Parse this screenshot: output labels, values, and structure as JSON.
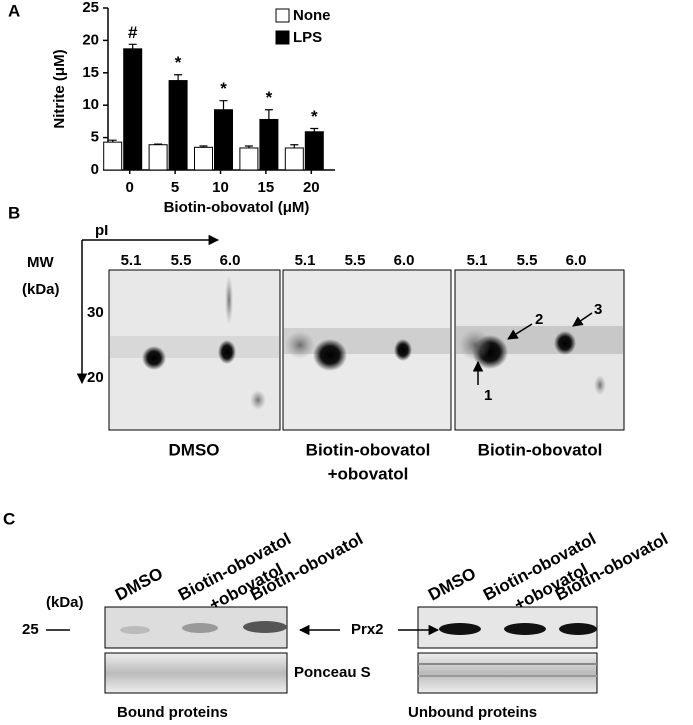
{
  "chart_data": {
    "type": "bar",
    "panel_label": "A",
    "ylabel": "Nitrite (μM)",
    "xlabel": "Biotin-obovatol (μM)",
    "categories": [
      "0",
      "5",
      "10",
      "15",
      "20"
    ],
    "series": [
      {
        "name": "None",
        "color": "#ffffff",
        "values": [
          4.3,
          3.9,
          3.5,
          3.4,
          3.4
        ],
        "errors": [
          0.3,
          0.1,
          0.2,
          0.3,
          0.5
        ]
      },
      {
        "name": "LPS",
        "color": "#000000",
        "values": [
          18.7,
          13.8,
          9.3,
          7.8,
          5.9
        ],
        "errors": [
          0.7,
          0.9,
          1.4,
          1.5,
          0.5
        ],
        "annotations": [
          "#",
          "*",
          "*",
          "*",
          "*"
        ]
      }
    ],
    "ylim": [
      0,
      25
    ],
    "yticks": [
      0,
      5,
      10,
      15,
      20,
      25
    ],
    "legend": "upper right"
  },
  "panel_b": {
    "label": "B",
    "pi_label": "pI",
    "mw_label": [
      "MW",
      "(kDa)"
    ],
    "mw_ticks": [
      "30",
      "20"
    ],
    "gels": [
      {
        "pi_ticks": [
          "5.1",
          "5.5",
          "6.0"
        ],
        "caption": [
          "DMSO"
        ]
      },
      {
        "pi_ticks": [
          "5.1",
          "5.5",
          "6.0"
        ],
        "caption": [
          "Biotin-obovatol",
          "+obovatol"
        ]
      },
      {
        "pi_ticks": [
          "5.1",
          "5.5",
          "6.0"
        ],
        "caption": [
          "Biotin-obovatol"
        ]
      }
    ],
    "spots": [
      "1",
      "2",
      "3"
    ]
  },
  "panel_c": {
    "label": "C",
    "kda": "(kDa)",
    "marker": "25",
    "prx2": "Prx2",
    "ponceau": "Ponceau S",
    "blots": [
      {
        "lanes": [
          [
            "DMSO"
          ],
          [
            "Biotin-obovatol",
            "+obovatol"
          ],
          [
            "Biotin-obovatol"
          ]
        ],
        "caption": "Bound proteins"
      },
      {
        "lanes": [
          [
            "DMSO"
          ],
          [
            "Biotin-obovatol",
            "+obovatol"
          ],
          [
            "Biotin-obovatol"
          ]
        ],
        "caption": "Unbound proteins"
      }
    ]
  }
}
